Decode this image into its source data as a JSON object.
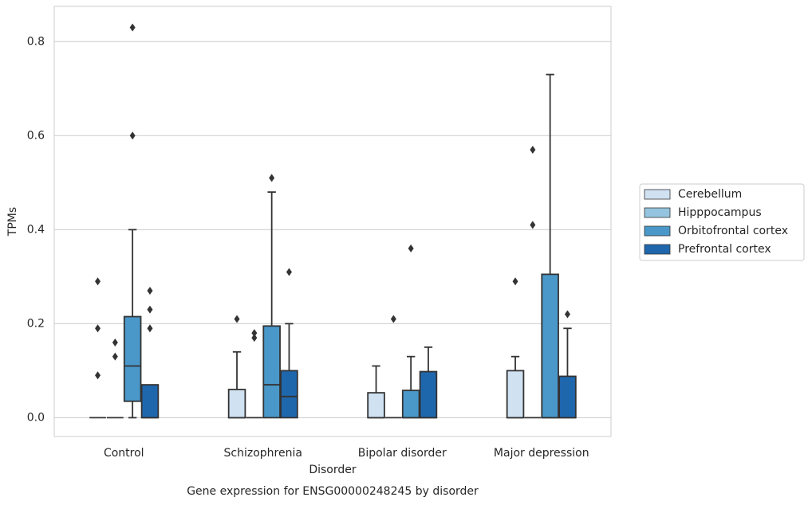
{
  "chart_data": {
    "type": "box",
    "title": "Gene expression for ENSG00000248245 by disorder",
    "x_label": "Disorder",
    "y_label": "TPMs",
    "categories": [
      "Control",
      "Schizophrenia",
      "Bipolar disorder",
      "Major depression"
    ],
    "ylim": [
      -0.04,
      0.875
    ],
    "yticks": [
      {
        "value": 0,
        "label": "0.0"
      },
      0.2,
      0.4,
      0.6,
      0.8
    ],
    "grid": true,
    "legend": "right",
    "series": [
      {
        "name": "Cerebellum",
        "color": "#d0e1f2",
        "boxes": [
          {
            "min": 0,
            "q1": 0,
            "median": 0,
            "q3": 0,
            "max": 0,
            "outliers": [
              0.29,
              0.19,
              0.09
            ]
          },
          {
            "min": 0,
            "q1": 0,
            "median": 0,
            "q3": 0.06,
            "max": 0.14,
            "outliers": [
              0.21
            ]
          },
          {
            "min": 0,
            "q1": 0,
            "median": 0,
            "q3": 0.053,
            "max": 0.11,
            "outliers": []
          },
          {
            "min": 0,
            "q1": 0,
            "median": 0,
            "q3": 0.1,
            "max": 0.13,
            "outliers": [
              0.29
            ]
          }
        ]
      },
      {
        "name": "Hipppocampus",
        "color": "#94c4df",
        "boxes": [
          {
            "min": 0,
            "q1": 0,
            "median": 0,
            "q3": 0,
            "max": 0,
            "outliers": [
              0.16,
              0.13
            ]
          },
          {
            "min": 0,
            "q1": 0,
            "median": 0,
            "q3": 0,
            "max": 0,
            "outliers": [
              0.18,
              0.17
            ]
          },
          {
            "min": 0,
            "q1": 0,
            "median": 0,
            "q3": 0,
            "max": 0,
            "outliers": [
              0.21
            ]
          },
          {
            "min": 0,
            "q1": 0,
            "median": 0,
            "q3": 0,
            "max": 0,
            "outliers": [
              0.57,
              0.41
            ]
          }
        ]
      },
      {
        "name": "Orbitofrontal cortex",
        "color": "#4a98c9",
        "boxes": [
          {
            "min": 0,
            "q1": 0.035,
            "median": 0.11,
            "q3": 0.215,
            "max": 0.4,
            "outliers": [
              0.6,
              0.83
            ]
          },
          {
            "min": 0,
            "q1": 0,
            "median": 0.07,
            "q3": 0.195,
            "max": 0.48,
            "outliers": [
              0.51
            ]
          },
          {
            "min": 0,
            "q1": 0,
            "median": 0,
            "q3": 0.058,
            "max": 0.13,
            "outliers": [
              0.36
            ]
          },
          {
            "min": 0,
            "q1": 0,
            "median": 0,
            "q3": 0.305,
            "max": 0.73,
            "outliers": []
          }
        ]
      },
      {
        "name": "Prefrontal cortex",
        "color": "#1f67ad",
        "boxes": [
          {
            "min": 0,
            "q1": 0,
            "median": 0,
            "q3": 0.07,
            "max": 0.07,
            "outliers": [
              0.27,
              0.23,
              0.19
            ]
          },
          {
            "min": 0,
            "q1": 0,
            "median": 0.045,
            "q3": 0.1,
            "max": 0.2,
            "outliers": [
              0.31
            ]
          },
          {
            "min": 0,
            "q1": 0,
            "median": 0,
            "q3": 0.098,
            "max": 0.15,
            "outliers": []
          },
          {
            "min": 0,
            "q1": 0,
            "median": 0,
            "q3": 0.088,
            "max": 0.19,
            "outliers": [
              0.22
            ]
          }
        ]
      }
    ]
  }
}
